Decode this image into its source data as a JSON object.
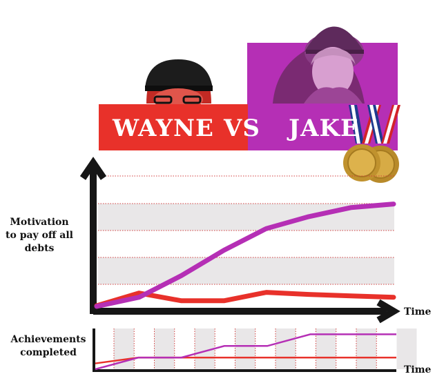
{
  "title": {
    "left": "WAYNE",
    "vs": "VS",
    "right": "JAKE"
  },
  "colors": {
    "wayne": "#e8312a",
    "jake": "#b62ab8",
    "band": "#e9e7e8",
    "axis": "#161616"
  },
  "main_chart": {
    "ylabel": "Motivation\nto pay off all debts",
    "xlabel": "Time"
  },
  "achievements_chart": {
    "ylabel": "Achievements completed",
    "xlabel": "Time"
  },
  "chart_data": [
    {
      "type": "line",
      "title": "",
      "xlabel": "Time",
      "ylabel": "Motivation to pay off all debts",
      "x": [
        0,
        1,
        2,
        3,
        4,
        5,
        6,
        7
      ],
      "series": [
        {
          "name": "WAYNE",
          "values": [
            5,
            23,
            12,
            12,
            24,
            21,
            19,
            17
          ]
        },
        {
          "name": "JAKE",
          "values": [
            4,
            17,
            48,
            84,
            115,
            132,
            145,
            150
          ]
        }
      ],
      "ylim": [
        0,
        190
      ],
      "grid": true
    },
    {
      "type": "line",
      "title": "",
      "xlabel": "Time",
      "ylabel": "Achievements completed",
      "x": [
        0,
        1,
        2,
        3,
        4,
        5,
        6,
        7
      ],
      "series": [
        {
          "name": "WAYNE",
          "values": [
            1,
            2,
            2,
            2,
            2,
            2,
            2,
            2
          ]
        },
        {
          "name": "JAKE",
          "values": [
            0,
            2,
            2,
            4,
            4,
            6,
            6,
            6
          ]
        }
      ],
      "ylim": [
        0,
        7
      ],
      "grid": true
    }
  ]
}
